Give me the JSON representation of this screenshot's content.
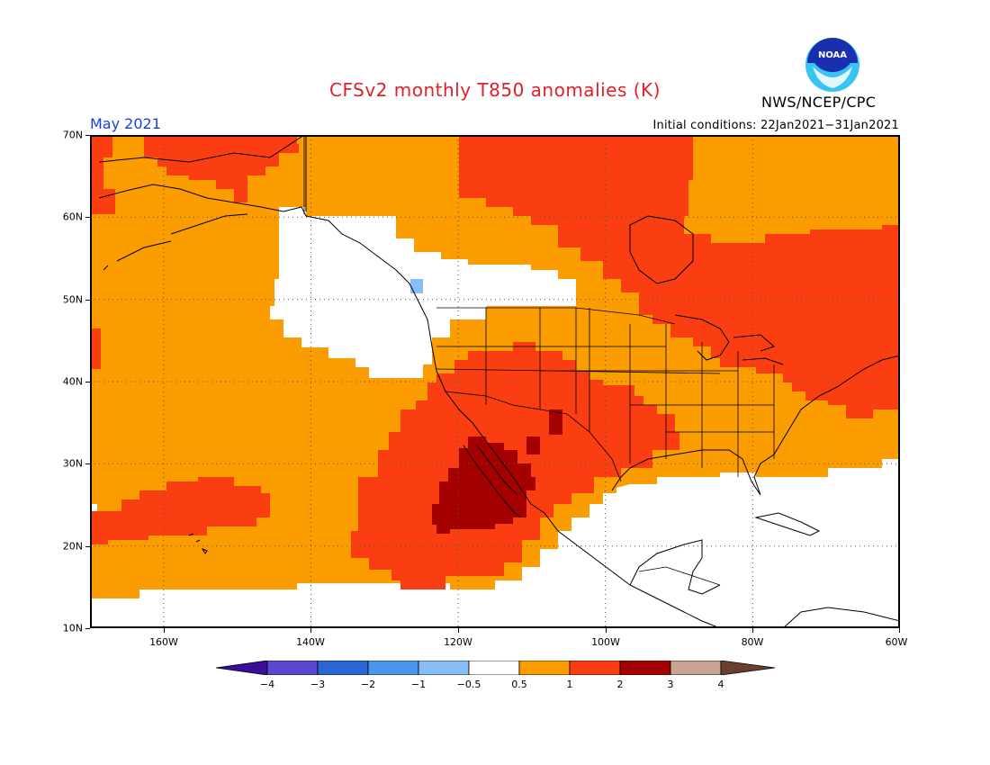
{
  "title": "CFSv2 monthly T850 anomalies (K)",
  "valid_month": "May 2021",
  "initial_conditions": "Initial conditions: 22Jan2021−31Jan2021",
  "agency": "NWS/NCEP/CPC",
  "logo_text": "NOAA",
  "map_extent": {
    "lon": [
      -170,
      -60
    ],
    "lat": [
      10,
      70
    ]
  },
  "lat_axis": {
    "labels": [
      "70N",
      "60N",
      "50N",
      "40N",
      "30N",
      "20N",
      "10N"
    ],
    "values": [
      70,
      60,
      50,
      40,
      30,
      20,
      10
    ]
  },
  "lon_axis": {
    "labels": [
      "160W",
      "140W",
      "120W",
      "100W",
      "80W",
      "60W"
    ],
    "values": [
      -160,
      -140,
      -120,
      -100,
      -80,
      -60
    ]
  },
  "legend": {
    "labels": [
      "−4",
      "−3",
      "−2",
      "−1",
      "−0.5",
      "0.5",
      "1",
      "2",
      "3",
      "4"
    ],
    "boundaries": [
      -4,
      -3,
      -2,
      -1,
      -0.5,
      0.5,
      1,
      2,
      3,
      4
    ],
    "colors": [
      "#3a0e98",
      "#5a48d2",
      "#2b66d6",
      "#4c97ee",
      "#86bef5",
      "#ffffff",
      "#fb9d00",
      "#fb3e12",
      "#a50000",
      "#c7a392",
      "#6b3e2e"
    ]
  },
  "anomaly_fields": [
    {
      "level": "1",
      "color": "#fb9d00"
    },
    {
      "level": "2",
      "color": "#fb3e12"
    },
    {
      "level": "3",
      "color": "#a50000"
    },
    {
      "level": "-0.5",
      "color": "#86bef5"
    }
  ]
}
